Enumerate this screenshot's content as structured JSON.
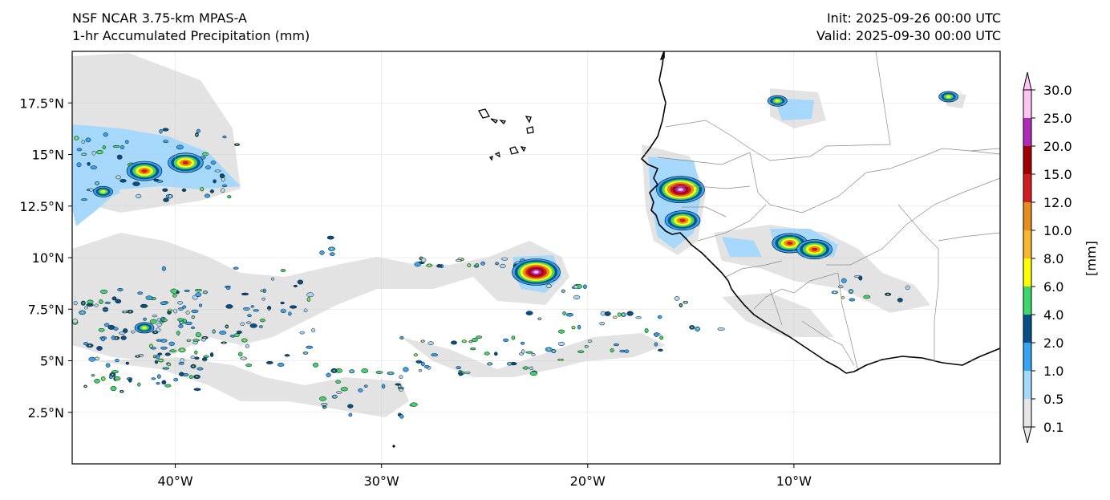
{
  "title": {
    "model": "NSF NCAR 3.75-km MPAS-A",
    "field": "1-hr Accumulated Precipitation (mm)",
    "init": "Init: 2025-09-26 00:00 UTC",
    "valid": "Valid: 2025-09-30 00:00 UTC"
  },
  "map": {
    "projection": "PlateCarree",
    "lon_range": [
      -45.0,
      0.0
    ],
    "lat_range": [
      0.0,
      20.0
    ],
    "lon_ticks": [
      {
        "value": -40,
        "label": "40°W"
      },
      {
        "value": -30,
        "label": "30°W"
      },
      {
        "value": -20,
        "label": "20°W"
      },
      {
        "value": -10,
        "label": "10°W"
      }
    ],
    "lat_ticks": [
      {
        "value": 17.5,
        "label": "17.5°N"
      },
      {
        "value": 15.0,
        "label": "15°N"
      },
      {
        "value": 12.5,
        "label": "12.5°N"
      },
      {
        "value": 10.0,
        "label": "10°N"
      },
      {
        "value": 7.5,
        "label": "7.5°N"
      },
      {
        "value": 5.0,
        "label": "5°N"
      },
      {
        "value": 2.5,
        "label": "2.5°N"
      }
    ]
  },
  "colorbar": {
    "label": "[mm]",
    "levels": [
      "0.1",
      "0.5",
      "1.0",
      "2.0",
      "4.0",
      "6.0",
      "8.0",
      "10.0",
      "12.0",
      "15.0",
      "20.0",
      "25.0",
      "30.0"
    ],
    "colors": [
      "#e6e6e6",
      "#a6d8fb",
      "#34a4f3",
      "#064f87",
      "#3fd66b",
      "#ffff00",
      "#f9b72e",
      "#e78c1e",
      "#d01e1e",
      "#a10000",
      "#b02bb7",
      "#ffc3f4"
    ]
  },
  "precip_clusters": [
    {
      "lon": -41.5,
      "lat": 14.2,
      "intensity": "high"
    },
    {
      "lon": -39.5,
      "lat": 14.6,
      "intensity": "high"
    },
    {
      "lon": -43.5,
      "lat": 13.2,
      "intensity": "mid"
    },
    {
      "lon": -41.5,
      "lat": 6.6,
      "intensity": "mid"
    },
    {
      "lon": -22.5,
      "lat": 9.3,
      "intensity": "very_high"
    },
    {
      "lon": -15.5,
      "lat": 13.3,
      "intensity": "very_high"
    },
    {
      "lon": -15.4,
      "lat": 11.8,
      "intensity": "high"
    },
    {
      "lon": -10.2,
      "lat": 10.7,
      "intensity": "high"
    },
    {
      "lon": -9.0,
      "lat": 10.4,
      "intensity": "high"
    },
    {
      "lon": -10.8,
      "lat": 17.6,
      "intensity": "mid"
    },
    {
      "lon": -2.5,
      "lat": 17.8,
      "intensity": "mid"
    }
  ]
}
